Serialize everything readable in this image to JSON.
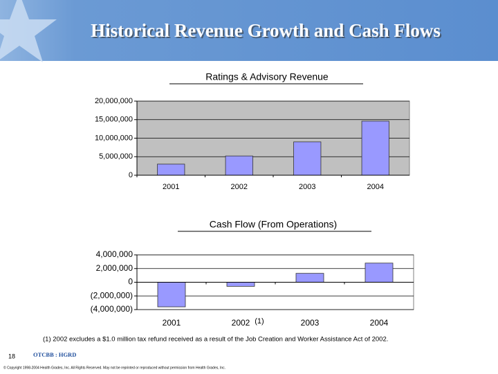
{
  "header": {
    "title": "Historical Revenue Growth and Cash Flows"
  },
  "chart_data": [
    {
      "type": "bar",
      "title": "Ratings & Advisory Revenue",
      "categories": [
        "2001",
        "2002",
        "2003",
        "2004"
      ],
      "values": [
        3000000,
        5200000,
        9000000,
        14600000
      ],
      "color": "#9999ff",
      "background": "#c0c0c0",
      "ylim": [
        0,
        20000000
      ],
      "yticks": [
        0,
        {
          "value": 5000000,
          "label": "5,000,000"
        },
        {
          "value": 10000000,
          "label": "10,000,000"
        },
        {
          "value": 15000000,
          "label": "15,000,000"
        },
        {
          "value": 20000000,
          "label": "20,000,000"
        }
      ],
      "grid": true
    },
    {
      "type": "bar",
      "title": "Cash Flow (From Operations)",
      "categories": [
        "2001",
        "2002",
        "2003",
        "2004"
      ],
      "values": [
        -3600000,
        -600000,
        1300000,
        2800000
      ],
      "color": "#9999ff",
      "background": "#ffffff",
      "annotation": "(1)",
      "ylim": [
        -4000000,
        4000000
      ],
      "yticks": [
        {
          "value": -4000000,
          "label": "(4,000,000)"
        },
        {
          "value": -2000000,
          "label": "(2,000,000)"
        },
        0,
        {
          "value": 2000000,
          "label": "2,000,000"
        },
        {
          "value": 4000000,
          "label": "4,000,000"
        }
      ],
      "grid": true
    }
  ],
  "footnote": "(1) 2002 excludes a $1.0 million tax refund received as a result of the Job Creation and Worker Assistance Act of 2002.",
  "footer": {
    "page": "18",
    "ticker": "OTCBB : HGRD",
    "copyright": "© Copyright 1998-2004 Health Grades, Inc.  All Rights Reserved.  May not be reprinted or reproduced without permission from Health Grades, Inc."
  }
}
